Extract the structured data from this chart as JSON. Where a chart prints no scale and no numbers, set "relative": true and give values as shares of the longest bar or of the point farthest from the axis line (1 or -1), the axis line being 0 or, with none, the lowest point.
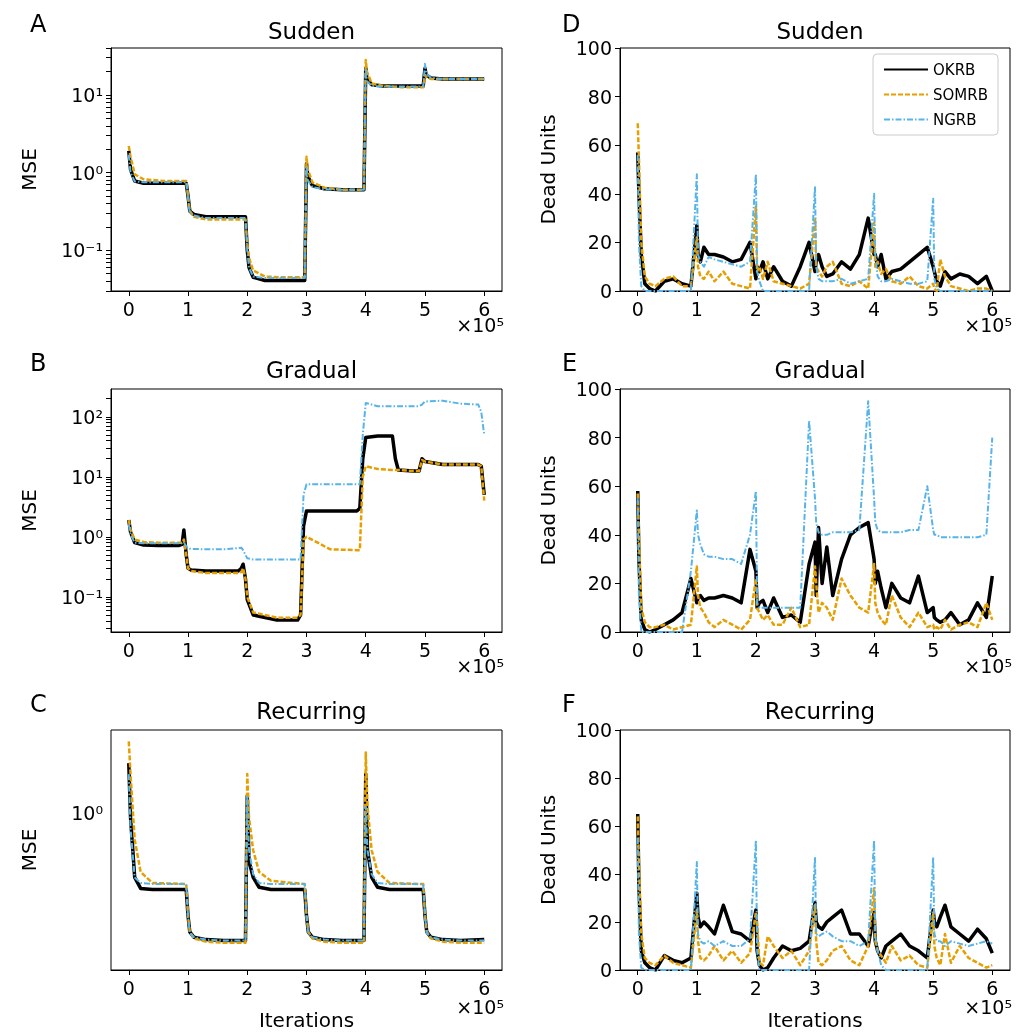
{
  "chart_data": [
    {
      "type": "line",
      "title": "Sudden",
      "ylabel": "MSE",
      "log": true,
      "annotations": [
        "A",
        "×10⁵"
      ],
      "x": [
        0,
        0.03,
        0.1,
        0.25,
        0.6,
        0.97,
        1,
        1.03,
        1.1,
        1.3,
        1.6,
        1.97,
        2,
        2.03,
        2.1,
        2.3,
        2.6,
        2.97,
        3,
        3.02,
        3.1,
        3.3,
        3.6,
        3.97,
        4,
        4.02,
        4.1,
        4.3,
        4.6,
        4.97,
        5,
        5.02,
        5.1,
        5.3,
        5.6,
        6
      ],
      "xlim": [
        -0.3,
        6.3
      ],
      "xticks": [
        0,
        1,
        2,
        3,
        4,
        5,
        6
      ],
      "ylim": [
        0.03,
        40
      ],
      "yticks": [
        {
          "value": 0.03,
          "label": null
        },
        {
          "value": 0.04,
          "label": null
        },
        {
          "value": 0.05,
          "label": null
        },
        {
          "value": 0.06,
          "label": null
        },
        {
          "value": 0.07,
          "label": null
        },
        {
          "value": 0.08,
          "label": null
        },
        {
          "value": 0.09,
          "label": null
        },
        {
          "value": 0.1,
          "label": "10⁻¹"
        },
        {
          "value": 0.2,
          "label": null
        },
        {
          "value": 0.3,
          "label": null
        },
        {
          "value": 0.4,
          "label": null
        },
        {
          "value": 0.5,
          "label": null
        },
        {
          "value": 0.6,
          "label": null
        },
        {
          "value": 0.7,
          "label": null
        },
        {
          "value": 0.8,
          "label": null
        },
        {
          "value": 0.9,
          "label": null
        },
        {
          "value": 1,
          "label": "10⁰"
        },
        {
          "value": 2,
          "label": null
        },
        {
          "value": 3,
          "label": null
        },
        {
          "value": 4,
          "label": null
        },
        {
          "value": 5,
          "label": null
        },
        {
          "value": 6,
          "label": null
        },
        {
          "value": 7,
          "label": null
        },
        {
          "value": 8,
          "label": null
        },
        {
          "value": 9,
          "label": null
        },
        {
          "value": 10,
          "label": "10¹"
        },
        {
          "value": 20,
          "label": null
        },
        {
          "value": 30,
          "label": null
        },
        {
          "value": 40,
          "label": null
        }
      ],
      "series": [
        {
          "color": "#000000",
          "line_style": "solid",
          "values": [
            1.9,
            1.1,
            0.78,
            0.73,
            0.73,
            0.73,
            0.5,
            0.32,
            0.29,
            0.27,
            0.27,
            0.27,
            0.1,
            0.06,
            0.045,
            0.041,
            0.041,
            0.041,
            1.3,
            0.9,
            0.68,
            0.62,
            0.6,
            0.6,
            22,
            16,
            13.5,
            13,
            13,
            13,
            22,
            18,
            16.5,
            16,
            16,
            16
          ]
        },
        {
          "color": "#e69f00",
          "line_style": "dashed",
          "values": [
            2.2,
            1.6,
            0.95,
            0.82,
            0.78,
            0.78,
            0.5,
            0.32,
            0.27,
            0.25,
            0.25,
            0.25,
            0.12,
            0.08,
            0.055,
            0.046,
            0.045,
            0.045,
            1.6,
            1.1,
            0.75,
            0.64,
            0.6,
            0.6,
            28,
            20,
            14,
            13,
            12.5,
            12.5,
            18,
            17,
            16,
            16,
            16,
            16
          ]
        },
        {
          "color": "#56b4e9",
          "line_style": "dashdot",
          "values": [
            1.7,
            1.0,
            0.77,
            0.75,
            0.75,
            0.75,
            0.5,
            0.3,
            0.28,
            0.26,
            0.26,
            0.26,
            0.1,
            0.06,
            0.046,
            0.044,
            0.044,
            0.044,
            1.2,
            0.8,
            0.65,
            0.61,
            0.6,
            0.6,
            22,
            15,
            13,
            12.8,
            12.8,
            12.8,
            25,
            19,
            16.5,
            16,
            16,
            16
          ]
        }
      ]
    },
    {
      "type": "line",
      "title": "Sudden",
      "ylabel": "Dead Units",
      "legend": "top right",
      "annotations": [
        "D",
        "×10⁵"
      ],
      "x": [
        0,
        0.02,
        0.06,
        0.12,
        0.2,
        0.3,
        0.45,
        0.6,
        0.75,
        0.9,
        1,
        1.02,
        1.06,
        1.12,
        1.2,
        1.3,
        1.45,
        1.6,
        1.75,
        1.9,
        2,
        2.02,
        2.06,
        2.12,
        2.2,
        2.3,
        2.45,
        2.6,
        2.75,
        2.9,
        3,
        3.02,
        3.06,
        3.12,
        3.2,
        3.3,
        3.45,
        3.6,
        3.75,
        3.9,
        4,
        4.02,
        4.06,
        4.12,
        4.2,
        4.3,
        4.45,
        4.6,
        4.75,
        4.9,
        5,
        5.02,
        5.06,
        5.12,
        5.2,
        5.3,
        5.45,
        5.6,
        5.75,
        5.9,
        6
      ],
      "xlim": [
        -0.3,
        6.3
      ],
      "xticks": [
        0,
        1,
        2,
        3,
        4,
        5,
        6
      ],
      "ylim": [
        0,
        100
      ],
      "yticks": [
        0,
        20,
        40,
        60,
        80,
        100
      ],
      "series": [
        {
          "name": "OKRB",
          "color": "#000000",
          "line_style": "solid",
          "values": [
            57,
            40,
            15,
            3,
            1,
            0,
            4,
            5,
            3,
            2,
            27,
            15,
            12,
            18,
            15,
            15,
            14,
            12,
            13,
            20,
            5,
            10,
            8,
            12,
            5,
            10,
            4,
            2,
            10,
            20,
            8,
            12,
            15,
            10,
            6,
            7,
            12,
            9,
            15,
            30,
            15,
            15,
            10,
            15,
            5,
            8,
            9,
            12,
            15,
            18,
            10,
            8,
            4,
            2,
            8,
            5,
            7,
            6,
            3,
            6,
            0
          ]
        },
        {
          "name": "SOMRB",
          "color": "#e69f00",
          "line_style": "dashed",
          "values": [
            69,
            55,
            20,
            6,
            3,
            2,
            5,
            6,
            2,
            2,
            22,
            10,
            6,
            5,
            8,
            4,
            8,
            3,
            2,
            1,
            35,
            8,
            10,
            5,
            12,
            4,
            3,
            2,
            1,
            3,
            30,
            10,
            8,
            6,
            10,
            12,
            3,
            2,
            4,
            1,
            28,
            10,
            12,
            7,
            9,
            4,
            3,
            6,
            2,
            1,
            3,
            1,
            0,
            13,
            6,
            2,
            1,
            0,
            1,
            1,
            0
          ]
        },
        {
          "name": "NGRB",
          "color": "#56b4e9",
          "line_style": "dashdot",
          "values": [
            56,
            20,
            2,
            0,
            0,
            0,
            0,
            0,
            0,
            0,
            48,
            15,
            12,
            10,
            14,
            13,
            12,
            11,
            10,
            12,
            48,
            8,
            4,
            0,
            0,
            0,
            0,
            0,
            0,
            0,
            43,
            10,
            5,
            4,
            4,
            4,
            5,
            3,
            4,
            5,
            40,
            15,
            6,
            4,
            4,
            5,
            4,
            3,
            3,
            4,
            38,
            5,
            1,
            0,
            0,
            0,
            0,
            0,
            0,
            0,
            0
          ]
        }
      ]
    },
    {
      "type": "line",
      "title": "Gradual",
      "ylabel": "MSE",
      "log": true,
      "annotations": [
        "B",
        "×10⁵"
      ],
      "x": [
        0,
        0.03,
        0.1,
        0.25,
        0.5,
        0.85,
        0.9,
        0.93,
        0.97,
        1,
        1.05,
        1.3,
        1.6,
        1.85,
        1.9,
        1.93,
        1.97,
        2,
        2.1,
        2.5,
        2.85,
        2.9,
        2.95,
        3,
        3.4,
        3.85,
        3.9,
        3.95,
        4,
        4.2,
        4.45,
        4.5,
        4.55,
        4.8,
        4.9,
        4.95,
        5,
        5.3,
        5.6,
        5.9,
        5.95,
        6
      ],
      "xlim": [
        -0.3,
        6.3
      ],
      "xticks": [
        0,
        1,
        2,
        3,
        4,
        5,
        6
      ],
      "ylim": [
        0.026,
        290
      ],
      "yticks": [
        {
          "value": 0.03,
          "label": null
        },
        {
          "value": 0.04,
          "label": null
        },
        {
          "value": 0.05,
          "label": null
        },
        {
          "value": 0.06,
          "label": null
        },
        {
          "value": 0.07,
          "label": null
        },
        {
          "value": 0.08,
          "label": null
        },
        {
          "value": 0.09,
          "label": null
        },
        {
          "value": 0.1,
          "label": "10⁻¹"
        },
        {
          "value": 0.2,
          "label": null
        },
        {
          "value": 0.3,
          "label": null
        },
        {
          "value": 0.4,
          "label": null
        },
        {
          "value": 0.5,
          "label": null
        },
        {
          "value": 0.6,
          "label": null
        },
        {
          "value": 0.7,
          "label": null
        },
        {
          "value": 0.8,
          "label": null
        },
        {
          "value": 0.9,
          "label": null
        },
        {
          "value": 1,
          "label": "10⁰"
        },
        {
          "value": 2,
          "label": null
        },
        {
          "value": 3,
          "label": null
        },
        {
          "value": 4,
          "label": null
        },
        {
          "value": 5,
          "label": null
        },
        {
          "value": 6,
          "label": null
        },
        {
          "value": 7,
          "label": null
        },
        {
          "value": 8,
          "label": null
        },
        {
          "value": 9,
          "label": null
        },
        {
          "value": 10,
          "label": "10¹"
        },
        {
          "value": 20,
          "label": null
        },
        {
          "value": 30,
          "label": null
        },
        {
          "value": 40,
          "label": null
        },
        {
          "value": 50,
          "label": null
        },
        {
          "value": 60,
          "label": null
        },
        {
          "value": 70,
          "label": null
        },
        {
          "value": 80,
          "label": null
        },
        {
          "value": 90,
          "label": null
        },
        {
          "value": 100,
          "label": "10²"
        },
        {
          "value": 200,
          "label": null
        }
      ],
      "series": [
        {
          "color": "#000000",
          "line_style": "solid",
          "values": [
            1.9,
            1.2,
            0.8,
            0.73,
            0.72,
            0.72,
            0.75,
            1.3,
            0.5,
            0.3,
            0.28,
            0.27,
            0.27,
            0.27,
            0.3,
            0.35,
            0.2,
            0.09,
            0.05,
            0.041,
            0.041,
            0.05,
            1.5,
            2.7,
            2.7,
            2.7,
            3,
            20,
            45,
            48,
            48,
            20,
            13,
            12.5,
            12.5,
            20,
            18,
            16,
            16,
            16,
            15,
            5
          ]
        },
        {
          "color": "#e69f00",
          "line_style": "dashed",
          "values": [
            1.9,
            1.3,
            0.9,
            0.82,
            0.8,
            0.8,
            0.8,
            0.9,
            0.5,
            0.3,
            0.27,
            0.25,
            0.25,
            0.25,
            0.26,
            0.3,
            0.2,
            0.1,
            0.055,
            0.045,
            0.045,
            0.05,
            0.9,
            1.0,
            0.62,
            0.6,
            0.6,
            10,
            15,
            13.5,
            13,
            13,
            13,
            12.5,
            12.5,
            19,
            18,
            16,
            16,
            16,
            15,
            4
          ]
        },
        {
          "color": "#56b4e9",
          "line_style": "dashdot",
          "values": [
            1.6,
            1.1,
            0.8,
            0.78,
            0.78,
            0.78,
            0.78,
            0.8,
            0.7,
            0.64,
            0.63,
            0.62,
            0.62,
            0.65,
            0.66,
            0.6,
            0.5,
            0.44,
            0.42,
            0.42,
            0.42,
            0.42,
            5,
            7.5,
            7.5,
            7.5,
            7.5,
            50,
            170,
            150,
            150,
            150,
            150,
            150,
            150,
            160,
            180,
            185,
            165,
            160,
            120,
            50
          ]
        }
      ]
    },
    {
      "type": "line",
      "title": "Gradual",
      "ylabel": "Dead Units",
      "annotations": [
        "E",
        "×10⁵"
      ],
      "x": [
        0,
        0.02,
        0.06,
        0.12,
        0.2,
        0.3,
        0.45,
        0.6,
        0.75,
        0.9,
        1,
        1.02,
        1.06,
        1.12,
        1.2,
        1.3,
        1.45,
        1.6,
        1.75,
        1.9,
        2,
        2.02,
        2.06,
        2.12,
        2.2,
        2.3,
        2.45,
        2.6,
        2.75,
        2.9,
        3,
        3.02,
        3.06,
        3.12,
        3.2,
        3.3,
        3.45,
        3.6,
        3.75,
        3.9,
        4,
        4.02,
        4.06,
        4.12,
        4.2,
        4.3,
        4.45,
        4.6,
        4.75,
        4.9,
        5,
        5.02,
        5.06,
        5.12,
        5.2,
        5.3,
        5.45,
        5.6,
        5.75,
        5.9,
        6
      ],
      "xlim": [
        -0.3,
        6.3
      ],
      "xticks": [
        0,
        1,
        2,
        3,
        4,
        5,
        6
      ],
      "ylim": [
        0,
        100
      ],
      "yticks": [
        0,
        20,
        40,
        60,
        80,
        100
      ],
      "series": [
        {
          "color": "#000000",
          "line_style": "solid",
          "values": [
            58,
            30,
            5,
            1,
            0,
            1,
            3,
            5,
            8,
            22,
            12,
            14,
            15,
            13,
            14,
            14,
            15,
            14,
            12,
            34,
            25,
            10,
            12,
            13,
            8,
            14,
            6,
            7,
            4,
            28,
            37,
            15,
            43,
            20,
            35,
            15,
            30,
            40,
            43,
            45,
            30,
            20,
            25,
            18,
            10,
            20,
            14,
            12,
            23,
            8,
            10,
            6,
            5,
            4,
            5,
            8,
            3,
            5,
            12,
            6,
            23
          ]
        },
        {
          "color": "#e69f00",
          "line_style": "dashed",
          "values": [
            57,
            40,
            10,
            4,
            2,
            2,
            3,
            1,
            2,
            3,
            27,
            15,
            10,
            8,
            4,
            2,
            5,
            3,
            1,
            5,
            22,
            10,
            8,
            5,
            7,
            3,
            3,
            10,
            2,
            3,
            27,
            20,
            8,
            12,
            10,
            5,
            22,
            15,
            10,
            8,
            28,
            12,
            8,
            5,
            3,
            15,
            6,
            2,
            8,
            2,
            3,
            1,
            2,
            1,
            5,
            1,
            3,
            4,
            2,
            12,
            5
          ]
        },
        {
          "color": "#56b4e9",
          "line_style": "dashdot",
          "values": [
            55,
            15,
            0,
            0,
            0,
            0,
            0,
            0,
            0,
            25,
            50,
            40,
            36,
            32,
            31,
            31,
            30,
            30,
            28,
            40,
            58,
            12,
            10,
            10,
            10,
            10,
            10,
            10,
            10,
            87,
            55,
            45,
            41,
            40,
            40,
            41,
            41,
            41,
            42,
            95,
            55,
            45,
            42,
            41,
            41,
            41,
            41,
            42,
            42,
            60,
            42,
            40,
            40,
            39,
            39,
            39,
            39,
            39,
            39,
            40,
            80
          ]
        }
      ]
    },
    {
      "type": "line",
      "title": "Recurring",
      "ylabel": "MSE",
      "xlabel": "Iterations",
      "relative": true,
      "annotations": [
        "C",
        "×10⁵",
        "10⁰"
      ],
      "x": [
        0,
        0.03,
        0.1,
        0.2,
        0.4,
        0.97,
        1,
        1.03,
        1.1,
        1.3,
        1.6,
        1.97,
        2,
        2.03,
        2.1,
        2.2,
        2.4,
        2.97,
        3,
        3.03,
        3.1,
        3.3,
        3.6,
        3.97,
        4,
        4.03,
        4.1,
        4.2,
        4.4,
        4.97,
        5,
        5.03,
        5.1,
        5.3,
        5.6,
        6
      ],
      "xlim": [
        -0.3,
        6.3
      ],
      "xticks": [
        0,
        1,
        2,
        3,
        4,
        5,
        6
      ],
      "series": [
        {
          "color": "#000000",
          "line_style": "solid",
          "values": [
            0.905,
            0.667,
            0.405,
            0.357,
            0.352,
            0.352,
            0.238,
            0.167,
            0.143,
            0.133,
            0.129,
            0.129,
            0.762,
            0.476,
            0.405,
            0.362,
            0.352,
            0.352,
            0.238,
            0.167,
            0.143,
            0.133,
            0.129,
            0.129,
            0.857,
            0.524,
            0.405,
            0.362,
            0.352,
            0.352,
            0.238,
            0.167,
            0.143,
            0.133,
            0.129,
            0.133
          ]
        },
        {
          "color": "#e69f00",
          "line_style": "dashed",
          "values": [
            1,
            0.857,
            0.571,
            0.429,
            0.381,
            0.376,
            0.238,
            0.167,
            0.138,
            0.124,
            0.119,
            0.119,
            0.857,
            0.667,
            0.524,
            0.429,
            0.39,
            0.376,
            0.238,
            0.167,
            0.138,
            0.124,
            0.119,
            0.119,
            0.952,
            0.714,
            0.524,
            0.429,
            0.381,
            0.376,
            0.238,
            0.167,
            0.138,
            0.124,
            0.119,
            0.119
          ]
        },
        {
          "color": "#56b4e9",
          "line_style": "dashdot",
          "values": [
            0.857,
            0.619,
            0.405,
            0.381,
            0.376,
            0.376,
            0.238,
            0.162,
            0.143,
            0.133,
            0.129,
            0.129,
            0.762,
            0.524,
            0.419,
            0.381,
            0.376,
            0.376,
            0.238,
            0.162,
            0.143,
            0.133,
            0.129,
            0.129,
            0.714,
            0.524,
            0.419,
            0.381,
            0.376,
            0.376,
            0.238,
            0.162,
            0.143,
            0.133,
            0.129,
            0.129
          ]
        }
      ]
    },
    {
      "type": "line",
      "title": "Recurring",
      "ylabel": "Dead Units",
      "xlabel": "Iterations",
      "annotations": [
        "F",
        "×10⁵"
      ],
      "x": [
        0,
        0.02,
        0.06,
        0.12,
        0.2,
        0.3,
        0.45,
        0.6,
        0.75,
        0.9,
        1,
        1.02,
        1.06,
        1.12,
        1.2,
        1.3,
        1.45,
        1.6,
        1.75,
        1.9,
        2,
        2.02,
        2.06,
        2.12,
        2.2,
        2.3,
        2.45,
        2.6,
        2.75,
        2.9,
        3,
        3.02,
        3.06,
        3.12,
        3.2,
        3.3,
        3.45,
        3.6,
        3.75,
        3.9,
        4,
        4.02,
        4.06,
        4.12,
        4.2,
        4.3,
        4.45,
        4.6,
        4.75,
        4.9,
        5,
        5.02,
        5.06,
        5.12,
        5.2,
        5.3,
        5.45,
        5.6,
        5.75,
        5.9,
        6
      ],
      "xlim": [
        -0.3,
        6.3
      ],
      "xticks": [
        0,
        1,
        2,
        3,
        4,
        5,
        6
      ],
      "ylim": [
        0,
        100
      ],
      "yticks": [
        0,
        20,
        40,
        60,
        80,
        100
      ],
      "series": [
        {
          "color": "#000000",
          "line_style": "solid",
          "values": [
            65,
            35,
            8,
            3,
            1,
            0,
            6,
            4,
            3,
            5,
            32,
            22,
            18,
            20,
            18,
            15,
            27,
            16,
            15,
            12,
            25,
            8,
            2,
            0,
            1,
            5,
            10,
            8,
            9,
            12,
            28,
            20,
            18,
            17,
            20,
            22,
            25,
            15,
            15,
            10,
            24,
            12,
            8,
            5,
            10,
            12,
            15,
            10,
            8,
            5,
            25,
            20,
            18,
            22,
            27,
            18,
            15,
            12,
            17,
            13,
            7
          ]
        },
        {
          "color": "#e69f00",
          "line_style": "dashed",
          "values": [
            64,
            45,
            15,
            5,
            3,
            2,
            6,
            3,
            2,
            1,
            25,
            12,
            5,
            4,
            6,
            10,
            4,
            8,
            3,
            7,
            24,
            20,
            3,
            2,
            14,
            10,
            5,
            8,
            2,
            8,
            27,
            12,
            3,
            2,
            4,
            8,
            10,
            4,
            2,
            10,
            34,
            12,
            8,
            6,
            3,
            10,
            4,
            6,
            2,
            1,
            24,
            10,
            5,
            2,
            15,
            3,
            10,
            5,
            3,
            1,
            2
          ]
        },
        {
          "color": "#56b4e9",
          "line_style": "dashdot",
          "values": [
            55,
            15,
            1,
            0,
            0,
            0,
            0,
            0,
            0,
            0,
            45,
            15,
            12,
            11,
            12,
            10,
            12,
            10,
            10,
            13,
            54,
            8,
            0,
            0,
            0,
            0,
            0,
            0,
            0,
            0,
            47,
            15,
            14,
            15,
            16,
            14,
            12,
            12,
            10,
            12,
            54,
            14,
            8,
            2,
            0,
            0,
            0,
            0,
            0,
            0,
            47,
            15,
            12,
            12,
            10,
            12,
            11,
            10,
            11,
            12,
            11
          ]
        }
      ]
    }
  ]
}
